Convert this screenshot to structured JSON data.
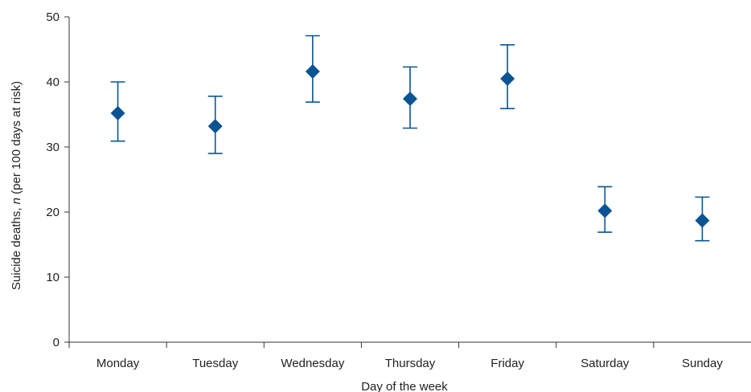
{
  "chart_data": {
    "type": "scatter",
    "title": "",
    "xlabel": "Day of the week",
    "ylabel_prefix": "Suicide deaths, ",
    "ylabel_italic": "n",
    "ylabel_suffix": " (per 100 days at risk)",
    "ylim": [
      0,
      50
    ],
    "yticks": [
      0,
      10,
      20,
      30,
      40,
      50
    ],
    "grid": false,
    "legend": "none",
    "marker": "diamond",
    "color": "#0a5494",
    "categories": [
      "Monday",
      "Tuesday",
      "Wednesday",
      "Thursday",
      "Friday",
      "Saturday",
      "Sunday"
    ],
    "series": [
      {
        "values": [
          35.2,
          33.2,
          41.6,
          37.4,
          40.5,
          20.2,
          18.7
        ],
        "lower": [
          30.9,
          29.0,
          36.9,
          32.9,
          35.9,
          16.9,
          15.6
        ],
        "upper": [
          40.0,
          37.8,
          47.1,
          42.3,
          45.7,
          23.9,
          22.3
        ]
      }
    ]
  }
}
